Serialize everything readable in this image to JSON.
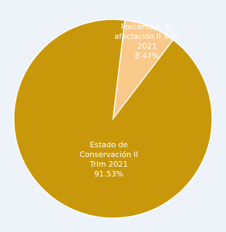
{
  "chart_data": {
    "type": "pie",
    "slices": [
      {
        "label_lines": [
          "Porcentaje de",
          "afectación II Trim",
          "2021",
          "8.47%"
        ],
        "value": 8.47,
        "color": "#f8c98a"
      },
      {
        "label_lines": [
          "Estado de",
          "Conservación II",
          "Trim 2021",
          "91.53%"
        ],
        "value": 91.53,
        "color": "#c9980a"
      }
    ],
    "colors": {
      "slice_edge": "#ffffff",
      "background": "#edf3f9"
    }
  }
}
